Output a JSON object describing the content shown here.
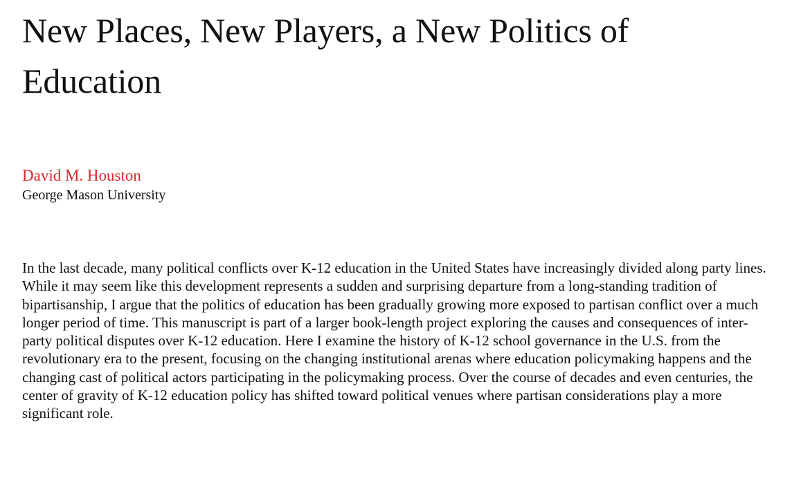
{
  "title": "New Places, New Players, a New Politics of Education",
  "author": {
    "name": "David M. Houston",
    "affiliation": "George Mason University",
    "name_color": "#d9262b"
  },
  "abstract": "In the last decade, many political conflicts over K-12 education in the United States have increasingly divided along party lines. While it may seem like this development represents a sudden and surprising departure from a long-standing tradition of bipartisanship, I argue that the politics of education has been gradually growing more exposed to partisan conflict over a much longer period of time. This manuscript is part of a larger book-length project exploring the causes and consequences of inter-party political disputes over K-12 education. Here I examine the history of K-12 school governance in the U.S. from the revolutionary era to the present, focusing on the changing institutional arenas where education policymaking happens and the changing cast of political actors participating in the policymaking process. Over the course of decades and even centuries, the center of gravity of K-12 education policy has shifted toward political venues where partisan considerations play a more significant role."
}
